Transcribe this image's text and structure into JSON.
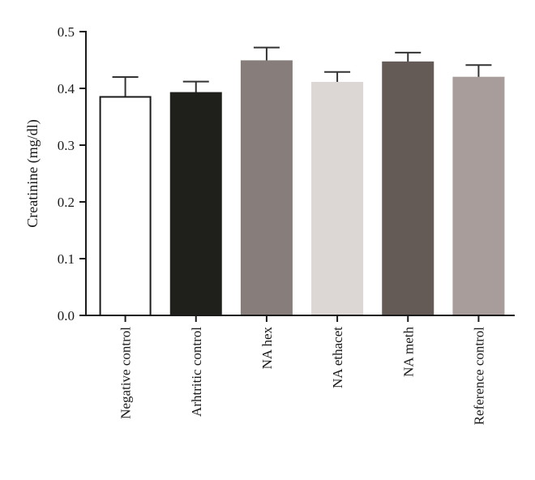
{
  "chart_data": {
    "type": "bar",
    "title": "",
    "xlabel": "",
    "ylabel": "Creatinine (mg/dl)",
    "ylim": [
      0,
      0.5
    ],
    "yticks": [
      0.0,
      0.1,
      0.2,
      0.3,
      0.4,
      0.5
    ],
    "ytick_labels": [
      "0.0",
      "0.1",
      "0.2",
      "0.3",
      "0.4",
      "0.5"
    ],
    "grid": false,
    "legend": "none",
    "categories": [
      "Negative control",
      "Arhtritic control",
      "NA hex",
      "NA ethacet",
      "NA meth",
      "Reference control"
    ],
    "values": [
      0.385,
      0.392,
      0.448,
      0.41,
      0.446,
      0.419
    ],
    "errors": [
      0.035,
      0.02,
      0.024,
      0.019,
      0.017,
      0.022
    ],
    "colors": [
      "#ffffff",
      "#1f201c",
      "#877d7a",
      "#dcd6d4",
      "#645b57",
      "#a89d9a"
    ],
    "edge_colors": [
      "#1a1a1a",
      "#1f201c",
      "#877d7a",
      "#dcd6d4",
      "#645b57",
      "#a89d9a"
    ]
  }
}
